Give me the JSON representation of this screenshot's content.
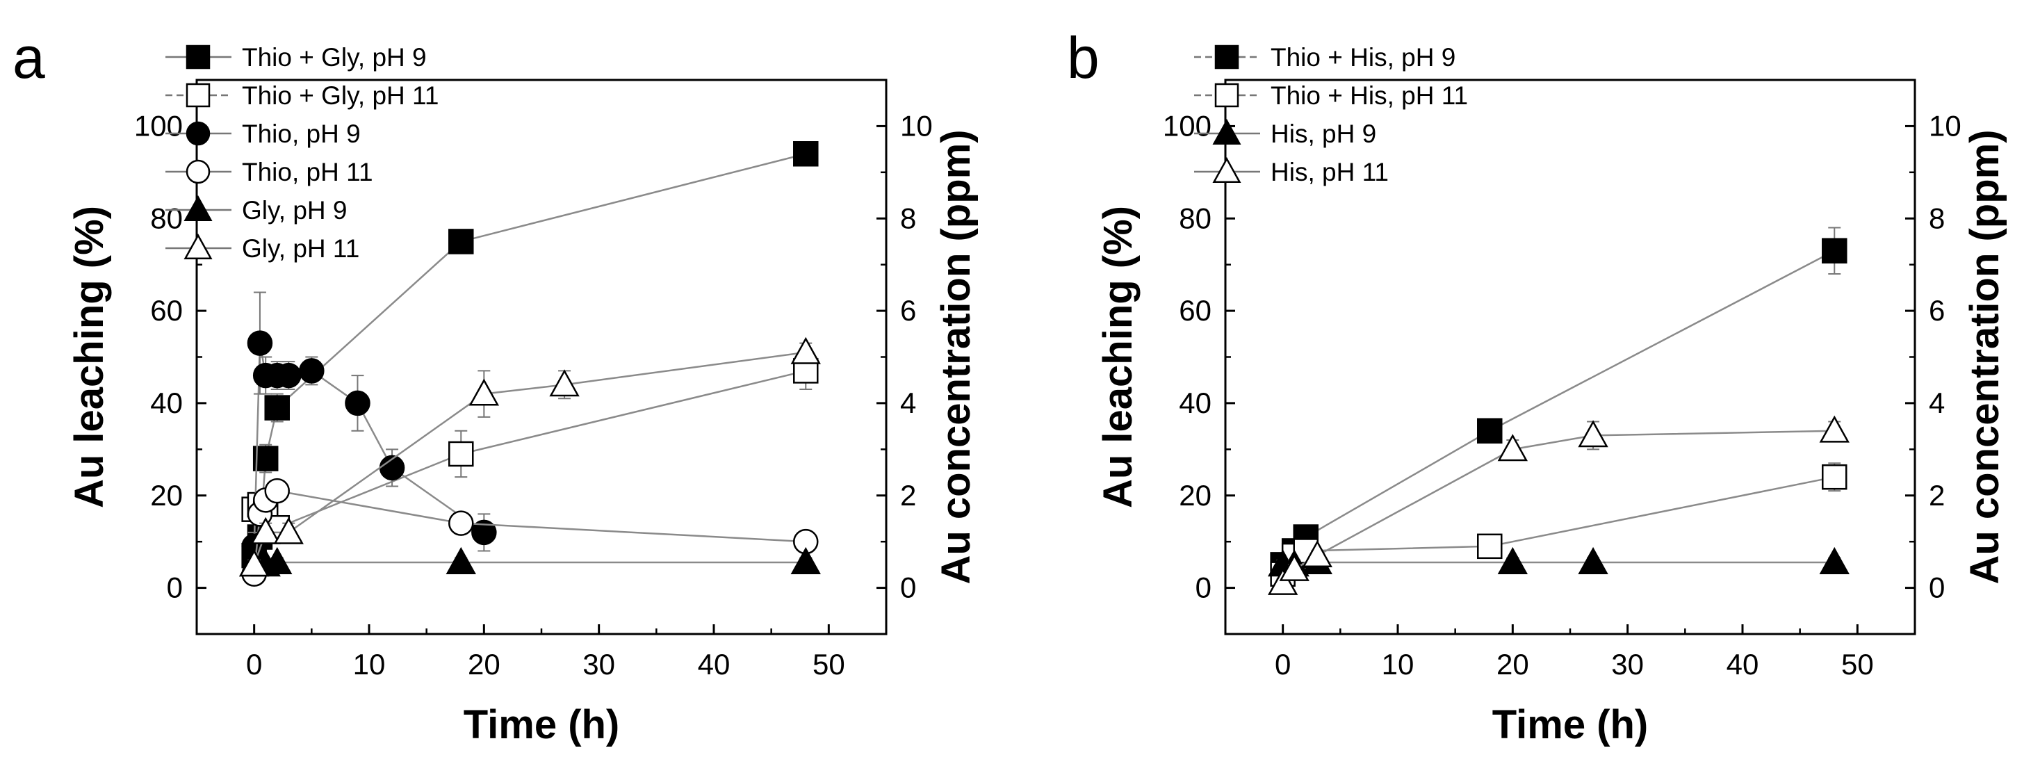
{
  "chart_data": [
    {
      "type": "scatter",
      "panel_label": "a",
      "xlabel": "Time (h)",
      "ylabel": "Au leaching (%)",
      "y2label": "Au concentration (ppm)",
      "xlim": [
        -5,
        55
      ],
      "ylim": [
        -10,
        110
      ],
      "y2lim": [
        -1,
        11
      ],
      "xticks": [
        0,
        10,
        20,
        30,
        40,
        50
      ],
      "yticks": [
        0,
        20,
        40,
        60,
        80,
        100
      ],
      "y2ticks": [
        0,
        2,
        4,
        6,
        8,
        10
      ],
      "legend_position": "top-left",
      "series": [
        {
          "name": "Thio + Gly, pH 9",
          "marker": "square",
          "filled": true,
          "dashed": false,
          "x": [
            0,
            0.5,
            1,
            2,
            18,
            48
          ],
          "y": [
            7,
            11,
            28,
            39,
            75,
            94
          ],
          "err": [
            2,
            3,
            3,
            3,
            2,
            2
          ]
        },
        {
          "name": "Thio + Gly, pH 11",
          "marker": "square",
          "filled": false,
          "dashed": true,
          "x": [
            0,
            0.5,
            1,
            2,
            18,
            48
          ],
          "y": [
            17,
            18,
            16,
            13,
            29,
            47
          ],
          "err": [
            2,
            2,
            2,
            2,
            5,
            4
          ]
        },
        {
          "name": "Thio, pH 9",
          "marker": "circle",
          "filled": true,
          "dashed": false,
          "x": [
            0,
            0.5,
            1,
            2,
            3,
            5,
            9,
            12,
            20
          ],
          "y": [
            9,
            53,
            46,
            46,
            46,
            47,
            40,
            26,
            12
          ],
          "err": [
            3,
            11,
            4,
            3,
            3,
            3,
            6,
            4,
            4
          ]
        },
        {
          "name": "Thio, pH 11",
          "marker": "circle",
          "filled": false,
          "dashed": false,
          "x": [
            0,
            0.5,
            1,
            2,
            18,
            48
          ],
          "y": [
            3,
            16,
            19,
            21,
            14,
            10
          ],
          "err": [
            1,
            2,
            2,
            2,
            2,
            1
          ]
        },
        {
          "name": "Gly, pH 9",
          "marker": "triangle",
          "filled": true,
          "dashed": false,
          "x": [
            0,
            1,
            2,
            18,
            48
          ],
          "y": [
            5,
            5,
            5.5,
            5.5,
            5.5
          ],
          "err": [
            1,
            1,
            1,
            1,
            1
          ]
        },
        {
          "name": "Gly, pH 11",
          "marker": "triangle",
          "filled": false,
          "dashed": false,
          "x": [
            0,
            1,
            3,
            20,
            27,
            48
          ],
          "y": [
            5,
            12,
            12,
            42,
            44,
            51
          ],
          "err": [
            1,
            2,
            2,
            5,
            3,
            2
          ]
        }
      ]
    },
    {
      "type": "scatter",
      "panel_label": "b",
      "xlabel": "Time (h)",
      "ylabel": "Au leaching (%)",
      "y2label": "Au concentration (ppm)",
      "xlim": [
        -5,
        55
      ],
      "ylim": [
        -10,
        110
      ],
      "y2lim": [
        -1,
        11
      ],
      "xticks": [
        0,
        10,
        20,
        30,
        40,
        50
      ],
      "yticks": [
        0,
        20,
        40,
        60,
        80,
        100
      ],
      "y2ticks": [
        0,
        2,
        4,
        6,
        8,
        10
      ],
      "legend_position": "top-left",
      "series": [
        {
          "name": "Thio + His, pH 9",
          "marker": "square",
          "filled": true,
          "dashed": true,
          "x": [
            0,
            1,
            2,
            18,
            48
          ],
          "y": [
            5,
            8,
            11,
            34,
            73
          ],
          "err": [
            2,
            2,
            2,
            2,
            5
          ]
        },
        {
          "name": "Thio + His, pH 11",
          "marker": "square",
          "filled": false,
          "dashed": true,
          "x": [
            0,
            1,
            2,
            18,
            48
          ],
          "y": [
            3,
            7,
            8,
            9,
            24
          ],
          "err": [
            1,
            1,
            1,
            2,
            3
          ]
        },
        {
          "name": "His, pH 9",
          "marker": "triangle",
          "filled": true,
          "dashed": false,
          "x": [
            0,
            1,
            3,
            20,
            27,
            48
          ],
          "y": [
            5,
            5,
            5.5,
            5.5,
            5.5,
            5.5
          ],
          "err": [
            1,
            1,
            1,
            1,
            1,
            1
          ]
        },
        {
          "name": "His, pH 11",
          "marker": "triangle",
          "filled": false,
          "dashed": false,
          "x": [
            0,
            1,
            3,
            20,
            27,
            48
          ],
          "y": [
            1,
            4,
            7,
            30,
            33,
            34
          ],
          "err": [
            1,
            1,
            1,
            2,
            3,
            2
          ]
        }
      ]
    }
  ]
}
